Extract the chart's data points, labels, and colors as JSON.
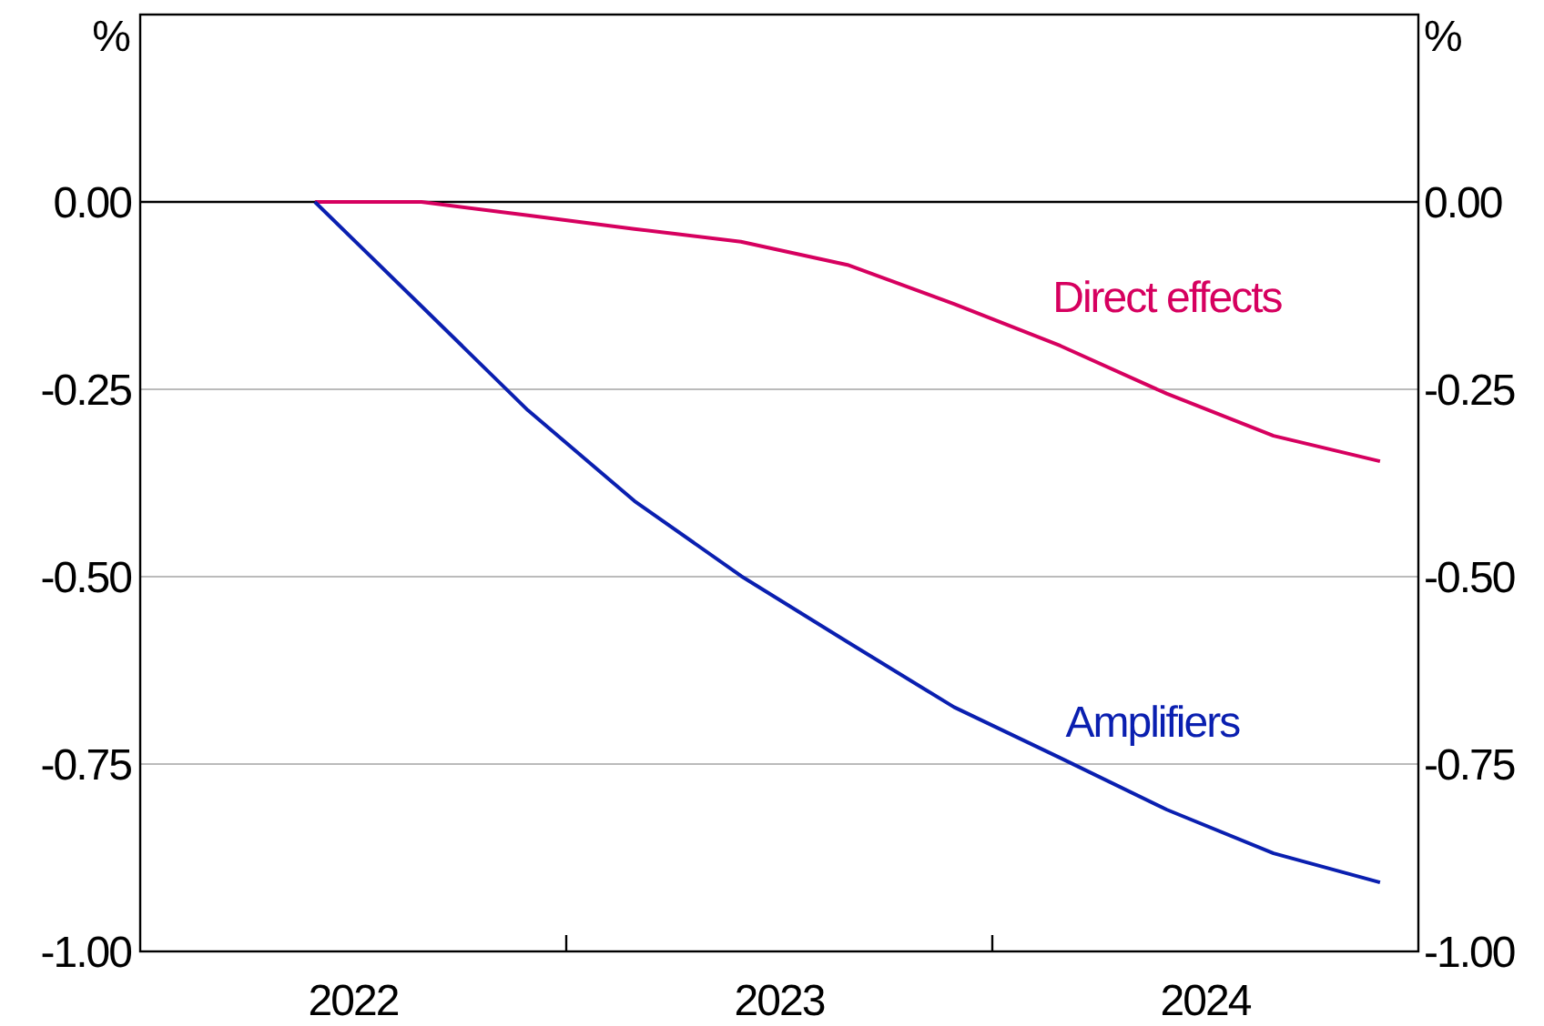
{
  "chart_data": {
    "type": "line",
    "ylabel": "%",
    "y2label": "%",
    "x": [
      2022.41,
      2022.66,
      2022.91,
      2023.16,
      2023.41,
      2023.66,
      2023.91,
      2024.16,
      2024.41,
      2024.66,
      2024.91
    ],
    "series": [
      {
        "name": "Direct effects",
        "color": "#d6005f",
        "values": [
          0,
          0,
          -0.018,
          -0.036,
          -0.053,
          -0.084,
          -0.136,
          -0.192,
          -0.256,
          -0.312,
          -0.346
        ]
      },
      {
        "name": "Amplifiers",
        "color": "#0a1fb0",
        "values": [
          0,
          -0.139,
          -0.278,
          -0.399,
          -0.499,
          -0.587,
          -0.674,
          -0.742,
          -0.811,
          -0.869,
          -0.908
        ]
      }
    ],
    "xlim": [
      2022,
      2025
    ],
    "xticks": [
      {
        "value": 2022.5,
        "label": "2022"
      },
      {
        "value": 2023,
        "label": null
      },
      {
        "value": 2023.5,
        "label": "2023"
      },
      {
        "value": 2024,
        "label": null
      },
      {
        "value": 2024.5,
        "label": "2024"
      }
    ],
    "ylim": [
      -1,
      0.25
    ],
    "yticks": [
      {
        "value": 0,
        "label": "0.00"
      },
      {
        "value": -0.25,
        "label": "-0.25"
      },
      {
        "value": -0.5,
        "label": "-0.50"
      },
      {
        "value": -0.75,
        "label": "-0.75"
      },
      {
        "value": -1,
        "label": "-1.00"
      }
    ],
    "y2lim": [
      -1,
      0.25
    ],
    "y2ticks": [
      {
        "value": 0,
        "label": "0.00"
      },
      {
        "value": -0.25,
        "label": "-0.25"
      },
      {
        "value": -0.5,
        "label": "-0.50"
      },
      {
        "value": -0.75,
        "label": "-0.75"
      },
      {
        "value": -1,
        "label": "-1.00"
      }
    ],
    "ref_lines": [
      {
        "axis": "y",
        "value": 0,
        "color": "#000000"
      }
    ],
    "grid": "y",
    "legend": false,
    "marker": "none",
    "line_style": "solid"
  }
}
